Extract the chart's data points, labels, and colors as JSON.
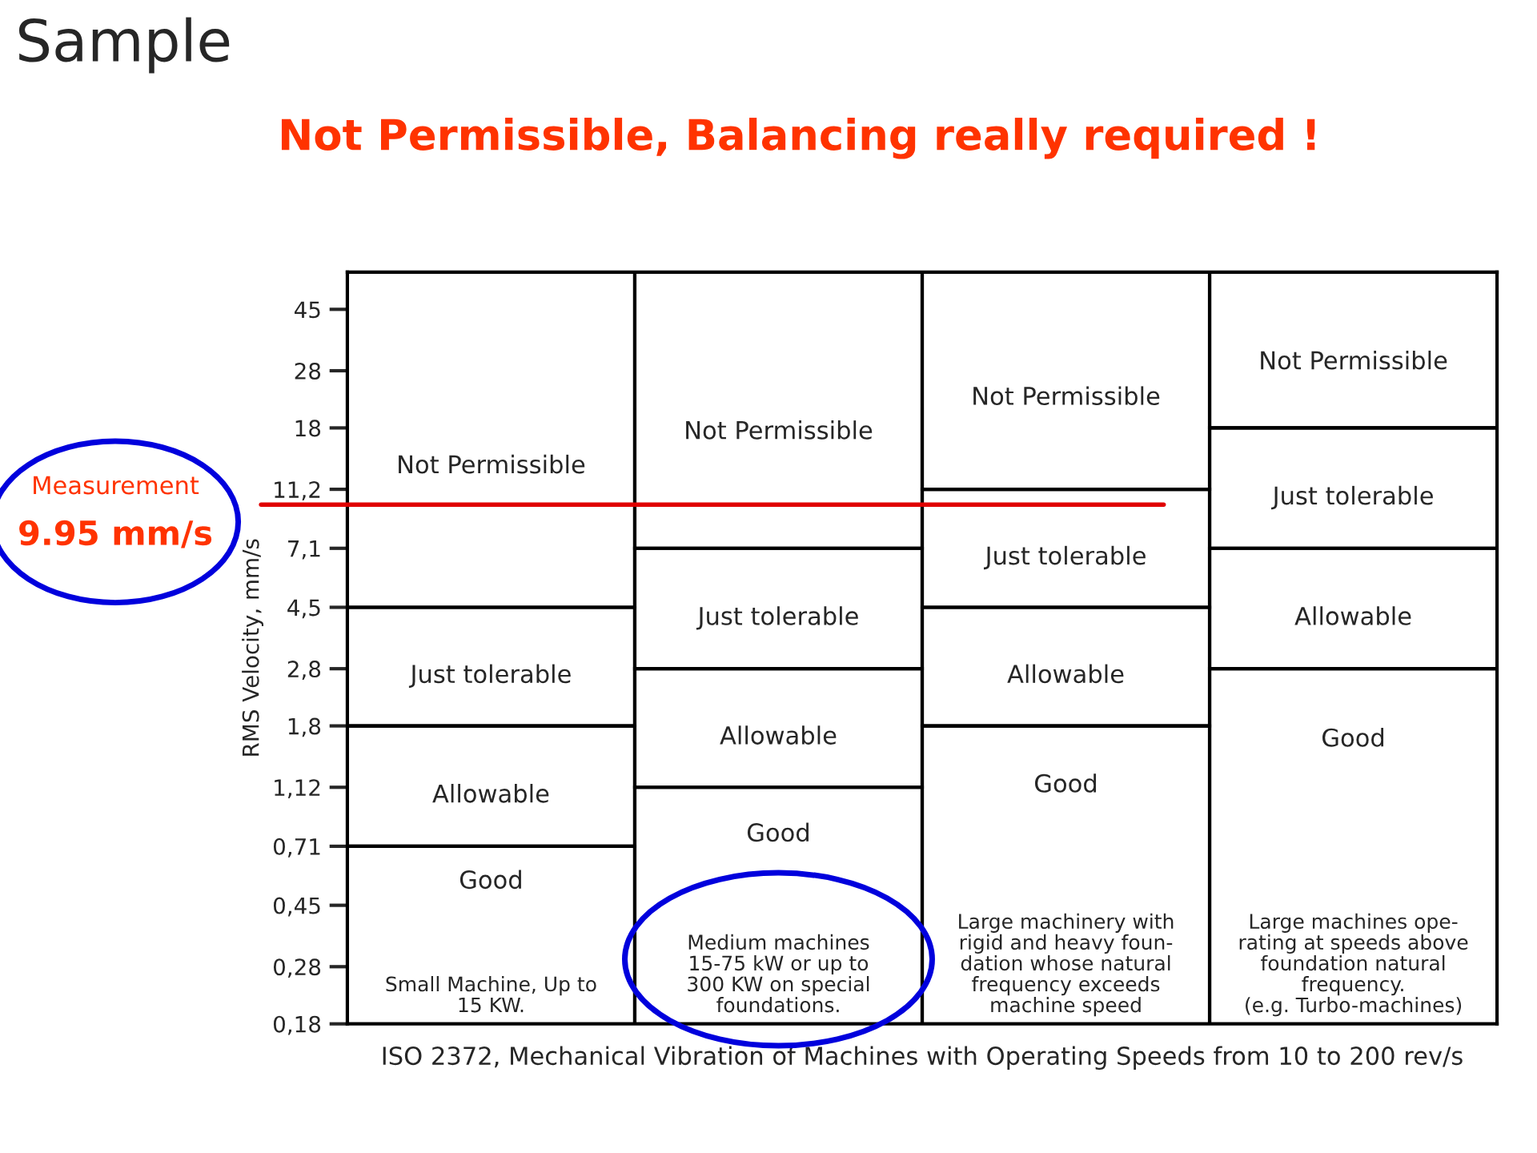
{
  "chart_data": {
    "type": "bar",
    "stacked": true,
    "log": true,
    "title": "Sample",
    "subtitle": "Not Permissible, Balancing really required !",
    "xlabel": "ISO 2372, Mechanical Vibration of Machines with Operating Speeds from 10 to 200 rev/s",
    "ylabel": "RMS Velocity, mm/s",
    "categories": [
      "Small Machine, Up to\n15 KW.",
      "Medium machines\n15-75 kW or up to\n300 KW on special\nfoundations.",
      "Large machinery with\nrigid and heavy foun-\ndation whose natural\nfrequency exceeds\nmachine speed",
      "Large machines ope-\nrating at speeds above\nfoundation natural\nfrequency.\n(e.g. Turbo-machines)"
    ],
    "series": [
      {
        "name": "Good",
        "values": [
          0.71,
          1.12,
          1.8,
          2.8
        ]
      },
      {
        "name": "Allowable",
        "values": [
          1.09,
          1.68,
          2.7,
          4.3
        ]
      },
      {
        "name": "Just tolerable",
        "values": [
          2.7,
          4.3,
          6.7,
          10.9
        ]
      },
      {
        "name": "Not Permissible",
        "values": [
          55.5,
          52.9,
          48.8,
          42
        ]
      }
    ],
    "ylim": [
      0.18,
      60
    ],
    "yticks": [
      {
        "value": 0.18,
        "label": "0,18"
      },
      {
        "value": 0.28,
        "label": "0,28"
      },
      {
        "value": 0.45,
        "label": "0,45"
      },
      {
        "value": 0.71,
        "label": "0,71"
      },
      {
        "value": 1.12,
        "label": "1,12"
      },
      {
        "value": 1.8,
        "label": "1,8"
      },
      {
        "value": 2.8,
        "label": "2,8"
      },
      {
        "value": 4.5,
        "label": "4,5"
      },
      {
        "value": 7.1,
        "label": "7,1"
      },
      {
        "value": 11.2,
        "label": "11,2"
      },
      {
        "value": 18,
        "label": "18"
      },
      {
        "value": 28,
        "label": "28"
      },
      {
        "value": 45,
        "label": "45"
      }
    ],
    "ref_lines": [
      {
        "axis": "y",
        "value": 9.95,
        "label": "Measurement\n9.95 mm/s",
        "color": "#e00000"
      }
    ],
    "tick_labels": "y",
    "legend": false
  }
}
